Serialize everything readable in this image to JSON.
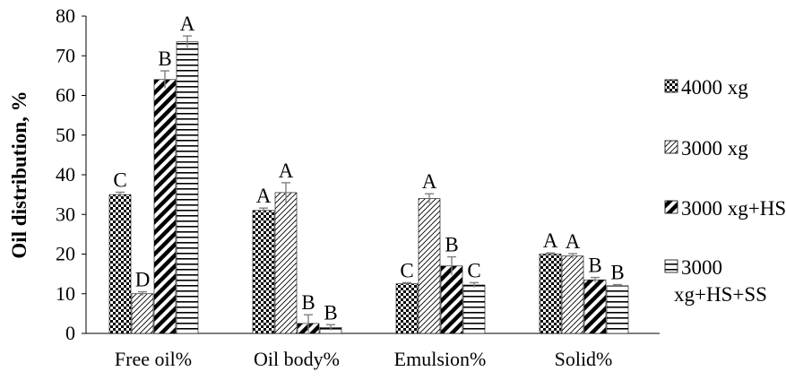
{
  "chart_data": {
    "type": "bar",
    "categories": [
      "Free oil%",
      "Oil body%",
      "Emulsion%",
      "Solid%"
    ],
    "ylabel": "Oil distribution, %",
    "xlabel": "",
    "ylim": [
      0,
      80
    ],
    "yticks": [
      0,
      10,
      20,
      30,
      40,
      50,
      60,
      70,
      80
    ],
    "grid": false,
    "legend_position": "right",
    "series": [
      {
        "name": "4000 xg",
        "pattern": "dots",
        "values": [
          35,
          31,
          12.5,
          20
        ],
        "errors": [
          0.6,
          0.6,
          0.3,
          0.3
        ],
        "letters": [
          "C",
          "A",
          "C",
          "A"
        ]
      },
      {
        "name": "3000 xg",
        "pattern": "light-diagonal",
        "values": [
          10,
          35.5,
          34,
          19.5
        ],
        "errors": [
          0.5,
          2.5,
          1.2,
          0.6
        ],
        "letters": [
          "D",
          "A",
          "A",
          "A"
        ]
      },
      {
        "name": "3000 xg+HS",
        "pattern": "wide-diagonal",
        "values": [
          64,
          2.5,
          17,
          13.5
        ],
        "errors": [
          2.2,
          2.2,
          2.3,
          0.6
        ],
        "letters": [
          "B",
          "B",
          "B",
          "B"
        ]
      },
      {
        "name": "3000 xg+HS+SS",
        "legend_lines": [
          "3000",
          "xg+HS+SS"
        ],
        "pattern": "horizontal",
        "values": [
          73.5,
          1.5,
          12.2,
          12
        ],
        "errors": [
          1.5,
          0.7,
          0.6,
          0.3
        ],
        "letters": [
          "A",
          "B",
          "C",
          "B"
        ]
      }
    ]
  }
}
